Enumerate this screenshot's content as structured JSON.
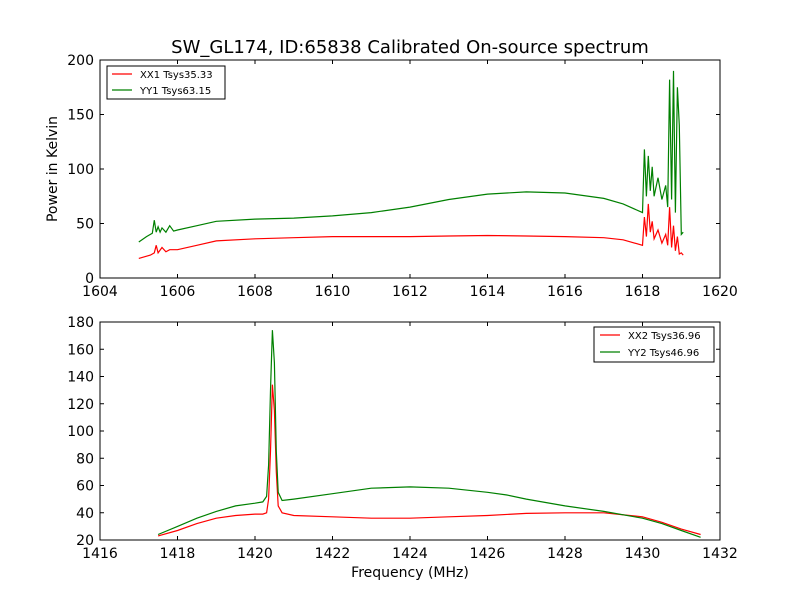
{
  "title": "SW_GL174, ID:65838 Calibrated On-source spectrum",
  "colors": {
    "xx": "#ff0000",
    "yy": "#008000",
    "axes": "#000000",
    "background": "#ffffff"
  },
  "chart_data": [
    {
      "type": "line",
      "title": "SW_GL174, ID:65838 Calibrated On-source spectrum",
      "xlabel": "",
      "ylabel": "Power in Kelvin",
      "xlim": [
        1604,
        1620
      ],
      "ylim": [
        0,
        200
      ],
      "xticks": [
        1604,
        1606,
        1608,
        1610,
        1612,
        1614,
        1616,
        1618,
        1620
      ],
      "yticks": [
        0,
        50,
        100,
        150,
        200
      ],
      "grid": false,
      "legend": "top-left",
      "series": [
        {
          "name": "XX1 Tsys35.33",
          "color": "#ff0000",
          "x": [
            1605.0,
            1605.3,
            1605.4,
            1605.45,
            1605.5,
            1605.6,
            1605.7,
            1605.8,
            1606.0,
            1606.5,
            1607.0,
            1608.0,
            1609.0,
            1610.0,
            1611.0,
            1612.0,
            1613.0,
            1614.0,
            1615.0,
            1616.0,
            1617.0,
            1617.5,
            1618.0,
            1618.05,
            1618.1,
            1618.15,
            1618.2,
            1618.25,
            1618.3,
            1618.4,
            1618.5,
            1618.6,
            1618.65,
            1618.7,
            1618.75,
            1618.8,
            1618.85,
            1618.9,
            1618.95,
            1619.0,
            1619.05
          ],
          "y": [
            18,
            21,
            23,
            30,
            23,
            28,
            24,
            26,
            26,
            30,
            34,
            36,
            37,
            38,
            38,
            38,
            38.5,
            39,
            38.5,
            38,
            37,
            35,
            30,
            56,
            38,
            68,
            42,
            52,
            36,
            44,
            32,
            40,
            30,
            65,
            28,
            48,
            25,
            38,
            22,
            23,
            21
          ]
        },
        {
          "name": "YY1 Tsys63.15",
          "color": "#008000",
          "x": [
            1605.0,
            1605.2,
            1605.35,
            1605.4,
            1605.45,
            1605.5,
            1605.55,
            1605.6,
            1605.7,
            1605.8,
            1605.9,
            1606.0,
            1606.5,
            1607.0,
            1608.0,
            1609.0,
            1610.0,
            1611.0,
            1612.0,
            1613.0,
            1614.0,
            1615.0,
            1616.0,
            1617.0,
            1617.5,
            1618.0,
            1618.05,
            1618.1,
            1618.15,
            1618.2,
            1618.25,
            1618.3,
            1618.4,
            1618.5,
            1618.6,
            1618.65,
            1618.7,
            1618.75,
            1618.8,
            1618.85,
            1618.9,
            1618.95,
            1619.0,
            1619.05
          ],
          "y": [
            33,
            38,
            41,
            53,
            42,
            47,
            42,
            46,
            42,
            48,
            43,
            44,
            48,
            52,
            54,
            55,
            57,
            60,
            65,
            72,
            77,
            79,
            78,
            73,
            68,
            60,
            118,
            75,
            112,
            80,
            102,
            75,
            92,
            72,
            85,
            65,
            182,
            72,
            190,
            60,
            175,
            140,
            40,
            42
          ]
        }
      ]
    },
    {
      "type": "line",
      "title": "",
      "xlabel": "Frequency (MHz)",
      "ylabel": "",
      "xlim": [
        1416,
        1432
      ],
      "ylim": [
        20,
        180
      ],
      "xticks": [
        1416,
        1418,
        1420,
        1422,
        1424,
        1426,
        1428,
        1430,
        1432
      ],
      "yticks": [
        20,
        40,
        60,
        80,
        100,
        120,
        140,
        160,
        180
      ],
      "grid": false,
      "legend": "top-right",
      "series": [
        {
          "name": "XX2 Tsys36.96",
          "color": "#ff0000",
          "x": [
            1417.5,
            1418.0,
            1418.5,
            1419.0,
            1419.5,
            1420.0,
            1420.2,
            1420.3,
            1420.35,
            1420.4,
            1420.45,
            1420.5,
            1420.55,
            1420.6,
            1420.7,
            1421.0,
            1422.0,
            1423.0,
            1424.0,
            1425.0,
            1426.0,
            1427.0,
            1428.0,
            1429.0,
            1430.0,
            1430.5,
            1431.0,
            1431.5
          ],
          "y": [
            23,
            27,
            32,
            36,
            38,
            39,
            39,
            40,
            50,
            85,
            134,
            115,
            70,
            45,
            40,
            38,
            37,
            36,
            36,
            37,
            38,
            39.5,
            40,
            40,
            37,
            33,
            28,
            24
          ]
        },
        {
          "name": "YY2 Tsys46.96",
          "color": "#008000",
          "x": [
            1417.5,
            1418.0,
            1418.5,
            1419.0,
            1419.5,
            1420.0,
            1420.2,
            1420.3,
            1420.35,
            1420.4,
            1420.45,
            1420.5,
            1420.55,
            1420.6,
            1420.7,
            1421.0,
            1422.0,
            1423.0,
            1424.0,
            1425.0,
            1426.0,
            1426.5,
            1427.0,
            1428.0,
            1429.0,
            1430.0,
            1430.5,
            1431.0,
            1431.5
          ],
          "y": [
            24,
            30,
            36,
            41,
            45,
            47,
            48,
            52,
            75,
            130,
            174,
            150,
            85,
            55,
            49,
            50,
            54,
            58,
            59,
            58,
            55,
            53,
            50,
            45,
            41,
            36,
            32,
            27,
            22
          ]
        }
      ]
    }
  ]
}
